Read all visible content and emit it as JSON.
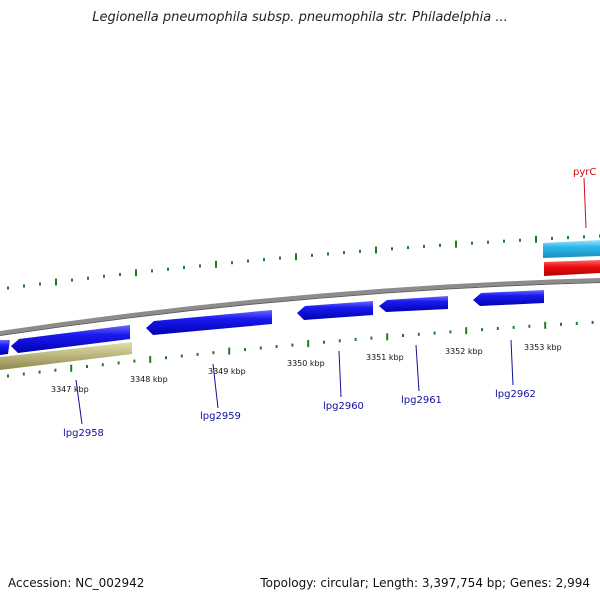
{
  "title": "Legionella pneumophila subsp. pneumophila str. Philadelphia ...",
  "footer": {
    "accession": "Accession: NC_002942",
    "summary": "Topology: circular; Length: 3,397,754 bp; Genes: 2,994"
  },
  "colors": {
    "backbone": "#8c8c8c",
    "tick": "#1e7d1e",
    "gene_forward": "#1010e0",
    "gene_reverse": "#1010e0",
    "rna_cyan": "#29b6e8",
    "rna_red": "#ee1010",
    "khaki": "#b9b47a",
    "gene_label": "#10109a",
    "highlight_label": "#cc1010"
  },
  "scale_labels": [
    "3347 kbp",
    "3348 kbp",
    "3349 kbp",
    "3350 kbp",
    "3351 kbp",
    "3352 kbp",
    "3353 kbp"
  ],
  "gene_labels": [
    {
      "name": "lpg2958",
      "highlight": false
    },
    {
      "name": "lpg2959",
      "highlight": false
    },
    {
      "name": "lpg2960",
      "highlight": false
    },
    {
      "name": "lpg2961",
      "highlight": false
    },
    {
      "name": "lpg2962",
      "highlight": false
    },
    {
      "name": "pyrC",
      "highlight": true
    }
  ]
}
